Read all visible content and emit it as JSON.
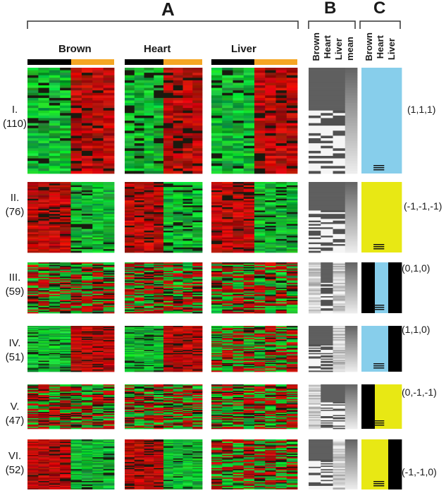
{
  "panels": {
    "A": "A",
    "B": "B",
    "C": "C"
  },
  "tissues": [
    "Brown",
    "Heart",
    "Liver"
  ],
  "b_columns": [
    "Brown",
    "Heart",
    "Liver",
    "mean"
  ],
  "c_columns": [
    "Brown",
    "Heart",
    "Liver"
  ],
  "colors": {
    "up": "#d42020",
    "down": "#27a838",
    "bar_dark": "#000000",
    "bar_light": "#f5a623",
    "c_pos": "#87ceeb",
    "c_neg": "#e8e814",
    "c_zero": "#000000"
  },
  "clusters": [
    {
      "roman": "I.",
      "count": "(110)",
      "pattern": "(1,1,1)",
      "first_half": "down",
      "c_states": [
        "pos",
        "pos",
        "pos"
      ]
    },
    {
      "roman": "II.",
      "count": "(76)",
      "pattern": "(-1,-1,-1)",
      "first_half": "up",
      "c_states": [
        "neg",
        "neg",
        "neg"
      ]
    },
    {
      "roman": "III.",
      "count": "(59)",
      "pattern": "(0,1,0)",
      "first_half": "mixed",
      "c_states": [
        "zero",
        "pos",
        "zero"
      ]
    },
    {
      "roman": "IV.",
      "count": "(51)",
      "pattern": "(1,1,0)",
      "first_half": "down",
      "c_states": [
        "pos",
        "pos",
        "zero"
      ]
    },
    {
      "roman": "V.",
      "count": "(47)",
      "pattern": "(0,-1,-1)",
      "first_half": "mixed",
      "c_states": [
        "zero",
        "neg",
        "neg"
      ]
    },
    {
      "roman": "VI.",
      "count": "(52)",
      "pattern": "(-1,-1,0)",
      "first_half": "up",
      "c_states": [
        "neg",
        "neg",
        "zero"
      ]
    }
  ]
}
